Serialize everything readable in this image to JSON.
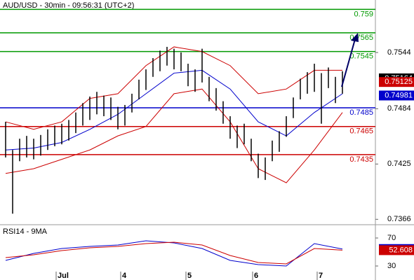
{
  "chart_data": [
    {
      "type": "range-bar",
      "title": "AUD/USD - 30min - 09:56:31 (UTC+2)",
      "bar_color": "#000000",
      "xlim": [
        -0.8,
        52.7
      ],
      "ylim": [
        0.7361,
        0.76
      ],
      "yticks": [
        0.7544,
        0.7484,
        0.7425,
        0.7366
      ],
      "high": [
        0.747,
        0.744,
        0.7452,
        0.7455,
        0.7452,
        0.7456,
        0.7462,
        0.7466,
        0.7468,
        0.7472,
        0.748,
        0.749,
        0.7497,
        0.7502,
        0.7498,
        0.7496,
        0.7486,
        0.7488,
        0.75,
        0.7515,
        0.7526,
        0.7538,
        0.7546,
        0.755,
        0.7548,
        0.7544,
        0.7532,
        0.7526,
        0.7548,
        0.7518,
        0.7506,
        0.7492,
        0.7476,
        0.7466,
        0.7468,
        0.7452,
        0.7436,
        0.7432,
        0.745,
        0.746,
        0.7476,
        0.7496,
        0.7516,
        0.7523,
        0.7532,
        0.7522,
        0.7528,
        0.7518,
        0.7524
      ],
      "low": [
        0.7432,
        0.7372,
        0.7428,
        0.7432,
        0.743,
        0.7434,
        0.744,
        0.7444,
        0.7446,
        0.745,
        0.7458,
        0.7466,
        0.7472,
        0.7478,
        0.7476,
        0.7472,
        0.7462,
        0.7466,
        0.748,
        0.7494,
        0.7504,
        0.7518,
        0.7524,
        0.753,
        0.7526,
        0.7524,
        0.7508,
        0.7502,
        0.7512,
        0.7492,
        0.7482,
        0.7468,
        0.7452,
        0.7442,
        0.7446,
        0.7428,
        0.741,
        0.7408,
        0.7428,
        0.7438,
        0.7454,
        0.7474,
        0.7494,
        0.75,
        0.7502,
        0.7468,
        0.7506,
        0.749,
        0.75
      ],
      "series": [
        {
          "color": "#0000cc",
          "x": [
            0,
            4,
            8,
            12,
            16,
            20,
            24,
            28,
            32,
            36,
            40,
            44,
            48
          ],
          "values": [
            0.744,
            0.7442,
            0.7448,
            0.7462,
            0.7478,
            0.75,
            0.7522,
            0.7525,
            0.7505,
            0.747,
            0.7455,
            0.748,
            0.75
          ]
        },
        {
          "color": "#cc0000",
          "x": [
            0,
            4,
            8,
            12,
            16,
            20,
            24,
            28,
            32,
            36,
            40,
            44,
            48
          ],
          "values": [
            0.747,
            0.7462,
            0.747,
            0.7495,
            0.75,
            0.753,
            0.755,
            0.7545,
            0.753,
            0.75,
            0.7505,
            0.7525,
            0.7525
          ]
        },
        {
          "color": "#cc0000",
          "x": [
            0,
            4,
            8,
            12,
            16,
            20,
            24,
            28,
            32,
            36,
            40,
            44,
            48
          ],
          "values": [
            0.7415,
            0.742,
            0.743,
            0.744,
            0.7455,
            0.7465,
            0.75,
            0.7505,
            0.747,
            0.742,
            0.7405,
            0.744,
            0.748
          ]
        }
      ],
      "levels": [
        {
          "value": 0.759,
          "color": "#009900"
        },
        {
          "value": 0.7565,
          "color": "#009900"
        },
        {
          "value": 0.7545,
          "color": "#009900"
        },
        {
          "value": 0.7485,
          "color": "#0000cc"
        },
        {
          "value": 0.7465,
          "color": "#cc0000"
        },
        {
          "value": 0.7435,
          "color": "#cc0000"
        }
      ],
      "last_values": [
        {
          "value": 0.75164,
          "color": "#000000"
        },
        {
          "value": 0.75125,
          "color": "#cc0000"
        },
        {
          "value": 0.74981,
          "color": "#0000cc"
        }
      ]
    },
    {
      "type": "line",
      "title": "RSI14 - 9MA",
      "xlim": [
        -0.8,
        52.7
      ],
      "ylim": [
        10,
        88
      ],
      "yticks": [
        70,
        30
      ],
      "xticks": [
        {
          "value": 7.2,
          "label": "Jul"
        },
        {
          "value": 16.4,
          "label": "4"
        },
        {
          "value": 25.7,
          "label": "5"
        },
        {
          "value": 35.2,
          "label": "6"
        },
        {
          "value": 44.4,
          "label": "7"
        }
      ],
      "series": [
        {
          "color": "#0000cc",
          "x": [
            0,
            4,
            8,
            12,
            16,
            20,
            24,
            28,
            32,
            36,
            40,
            44,
            48
          ],
          "values": [
            38,
            48,
            55,
            58,
            60,
            66,
            63,
            55,
            38,
            32,
            30,
            62,
            54.2434
          ]
        },
        {
          "color": "#cc0000",
          "x": [
            0,
            4,
            8,
            12,
            16,
            20,
            24,
            28,
            32,
            36,
            40,
            44,
            48
          ],
          "values": [
            42,
            46,
            52,
            56,
            58,
            62,
            64,
            60,
            45,
            35,
            33,
            55,
            52.608
          ]
        }
      ],
      "last_values": [
        {
          "value": 54.2434,
          "color": "#0000cc"
        },
        {
          "value": 52.608,
          "color": "#cc0000"
        }
      ]
    }
  ]
}
